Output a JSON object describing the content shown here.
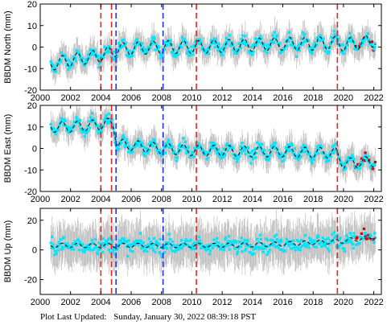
{
  "footer": {
    "label": "Plot Last Updated:",
    "timestamp": "Sunday, January 30, 2022 08:39:18 PST"
  },
  "colors": {
    "data_points": "#00e5ff",
    "error_bars": "#b5b5b5",
    "recent_points": "#dd0000",
    "model_line": "#000000",
    "event_red": "#ee2222",
    "event_blue": "#2233ee",
    "axis": "#000000"
  },
  "chart_data": [
    {
      "type": "scatter",
      "ylabel": "BBDM North (mm)",
      "xlim": [
        2000,
        2022.5
      ],
      "ylim": [
        -20,
        20
      ],
      "xticks": [
        2000,
        2002,
        2004,
        2006,
        2008,
        2010,
        2012,
        2014,
        2016,
        2018,
        2020,
        2022
      ],
      "yticks": [
        -20,
        -10,
        0,
        10,
        20
      ],
      "grid": false,
      "trend": {
        "x": [
          2000.7,
          2002,
          2004,
          2004.8,
          2005.1,
          2008,
          2010.2,
          2012,
          2014,
          2016,
          2018,
          2019.5,
          2020,
          2022.1
        ],
        "y": [
          -8,
          -6,
          -4,
          -2,
          -1,
          0,
          0,
          0.5,
          1,
          1.5,
          1.5,
          2,
          1,
          3
        ]
      },
      "seasonal_amplitude": 3,
      "scatter_sd": 3,
      "error_bar_half": 6
    },
    {
      "type": "scatter",
      "ylabel": "BBDM East (mm)",
      "xlim": [
        2000,
        2022.5
      ],
      "ylim": [
        -20,
        20
      ],
      "xticks": [
        2000,
        2002,
        2004,
        2006,
        2008,
        2010,
        2012,
        2014,
        2016,
        2018,
        2020,
        2022
      ],
      "yticks": [
        -20,
        -10,
        0,
        10,
        20
      ],
      "grid": false,
      "trend": {
        "x": [
          2000.7,
          2002,
          2004,
          2004.8,
          2005.1,
          2008,
          2010.2,
          2012,
          2014,
          2016,
          2018,
          2019.5,
          2020,
          2022.1
        ],
        "y": [
          10,
          10,
          11,
          12,
          2,
          0,
          -1,
          -1,
          -1.5,
          -1.5,
          -2,
          -2,
          -7,
          -6
        ]
      },
      "seasonal_amplitude": 2.5,
      "scatter_sd": 3,
      "error_bar_half": 6
    },
    {
      "type": "scatter",
      "ylabel": "BBDM Up (mm)",
      "xlim": [
        2000,
        2022.5
      ],
      "ylim": [
        -30,
        28
      ],
      "xticks": [
        2000,
        2002,
        2004,
        2006,
        2008,
        2010,
        2012,
        2014,
        2016,
        2018,
        2020,
        2022
      ],
      "yticks": [
        -20,
        0,
        20
      ],
      "grid": false,
      "trend": {
        "x": [
          2000.7,
          2004,
          2008,
          2012,
          2016,
          2018,
          2020,
          2022.1
        ],
        "y": [
          3,
          3,
          3,
          3,
          4,
          5,
          6,
          9
        ]
      },
      "seasonal_amplitude": 1.5,
      "scatter_sd": 6,
      "error_bar_half": 14
    }
  ],
  "events": [
    {
      "x": 2004.0,
      "color": "red"
    },
    {
      "x": 2004.7,
      "color": "red"
    },
    {
      "x": 2005.0,
      "color": "blue"
    },
    {
      "x": 2008.1,
      "color": "blue"
    },
    {
      "x": 2010.3,
      "color": "red"
    },
    {
      "x": 2019.6,
      "color": "red"
    }
  ],
  "recent_range": [
    2020.8,
    2022.1
  ]
}
